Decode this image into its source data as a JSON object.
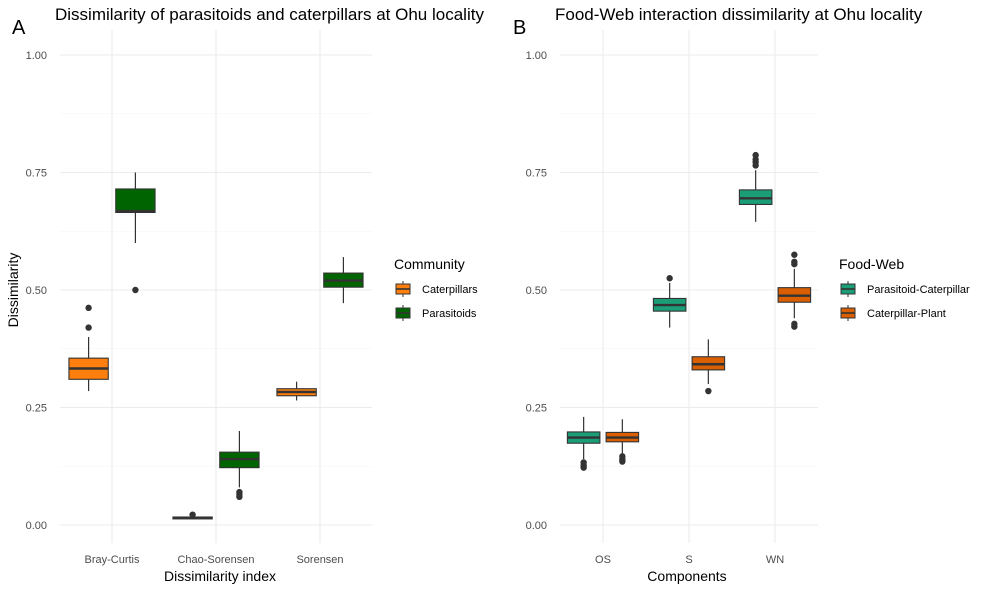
{
  "colors": {
    "caterpillars": "#FF7F0E",
    "parasitoids": "#006400",
    "parasitoid_caterpillar": "#1B9E77",
    "caterpillar_plant": "#D95F02",
    "outline": "#333333",
    "grid": "#ebebeb"
  },
  "chart_data": [
    {
      "type": "boxplot",
      "panel_tag": "A",
      "title": "Dissimilarity of parasitoids and caterpillars at Ohu locality",
      "xlabel": "Dissimilarity index",
      "ylabel": "Dissimilarity",
      "ylim": [
        0,
        1
      ],
      "yticks": [
        "0.00",
        "0.25",
        "0.50",
        "0.75",
        "1.00"
      ],
      "categories": [
        "Bray-Curtis",
        "Chao-Sorensen",
        "Sorensen"
      ],
      "legend": {
        "title": "Community",
        "position": "right",
        "entries": [
          "Caterpillars",
          "Parasitoids"
        ]
      },
      "series": [
        {
          "name": "Caterpillars",
          "color": "#FF7F0E",
          "boxes": [
            {
              "category": "Bray-Curtis",
              "min": 0.285,
              "q1": 0.31,
              "median": 0.333,
              "q3": 0.355,
              "max": 0.4,
              "outliers": [
                0.42,
                0.462
              ]
            },
            {
              "category": "Chao-Sorensen",
              "min": 0.012,
              "q1": 0.013,
              "median": 0.015,
              "q3": 0.017,
              "max": 0.019,
              "outliers": [
                0.022
              ]
            },
            {
              "category": "Sorensen",
              "min": 0.265,
              "q1": 0.275,
              "median": 0.283,
              "q3": 0.29,
              "max": 0.305,
              "outliers": []
            }
          ]
        },
        {
          "name": "Parasitoids",
          "color": "#006400",
          "boxes": [
            {
              "category": "Bray-Curtis",
              "min": 0.6,
              "q1": 0.665,
              "median": 0.668,
              "q3": 0.715,
              "max": 0.75,
              "outliers": [
                0.5
              ]
            },
            {
              "category": "Chao-Sorensen",
              "min": 0.08,
              "q1": 0.122,
              "median": 0.14,
              "q3": 0.155,
              "max": 0.2,
              "outliers": [
                0.06,
                0.065,
                0.07
              ]
            },
            {
              "category": "Sorensen",
              "min": 0.472,
              "q1": 0.506,
              "median": 0.52,
              "q3": 0.536,
              "max": 0.57,
              "outliers": []
            }
          ]
        }
      ]
    },
    {
      "type": "boxplot",
      "panel_tag": "B",
      "title": "Food-Web interaction dissimilarity at Ohu locality",
      "xlabel": "Components",
      "ylabel": "",
      "ylim": [
        0,
        1
      ],
      "yticks": [
        "0.00",
        "0.25",
        "0.50",
        "0.75",
        "1.00"
      ],
      "categories": [
        "OS",
        "S",
        "WN"
      ],
      "legend": {
        "title": "Food-Web",
        "position": "right",
        "entries": [
          "Parasitoid-Caterpillar",
          "Caterpillar-Plant"
        ]
      },
      "series": [
        {
          "name": "Parasitoid-Caterpillar",
          "color": "#1B9E77",
          "boxes": [
            {
              "category": "OS",
              "min": 0.14,
              "q1": 0.174,
              "median": 0.186,
              "q3": 0.198,
              "max": 0.23,
              "outliers": [
                0.122,
                0.127,
                0.133
              ]
            },
            {
              "category": "S",
              "min": 0.42,
              "q1": 0.455,
              "median": 0.468,
              "q3": 0.482,
              "max": 0.515,
              "outliers": [
                0.525
              ]
            },
            {
              "category": "WN",
              "min": 0.645,
              "q1": 0.682,
              "median": 0.695,
              "q3": 0.713,
              "max": 0.755,
              "outliers": [
                0.765,
                0.772,
                0.778,
                0.787
              ]
            }
          ]
        },
        {
          "name": "Caterpillar-Plant",
          "color": "#D95F02",
          "boxes": [
            {
              "category": "OS",
              "min": 0.15,
              "q1": 0.177,
              "median": 0.186,
              "q3": 0.197,
              "max": 0.225,
              "outliers": [
                0.135,
                0.14,
                0.146
              ]
            },
            {
              "category": "S",
              "min": 0.3,
              "q1": 0.33,
              "median": 0.342,
              "q3": 0.358,
              "max": 0.395,
              "outliers": [
                0.285
              ]
            },
            {
              "category": "WN",
              "min": 0.44,
              "q1": 0.474,
              "median": 0.488,
              "q3": 0.505,
              "max": 0.545,
              "outliers": [
                0.422,
                0.428,
                0.555,
                0.56,
                0.575
              ]
            }
          ]
        }
      ]
    }
  ]
}
